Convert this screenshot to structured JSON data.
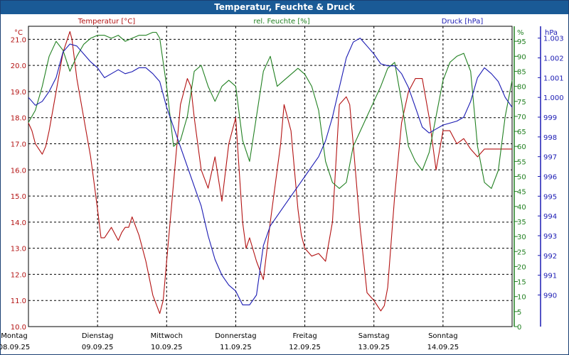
{
  "window": {
    "title": "Temperatur, Feuchte & Druck"
  },
  "colors": {
    "temperature": "#b31212",
    "humidity": "#218021",
    "pressure": "#1a1ab3",
    "titlebar": "#1a5a96"
  },
  "chart_data": {
    "type": "line",
    "title": "Temperatur, Feuchte & Druck",
    "legend": [
      "Temperatur [°C]",
      "rel. Feuchte [%]",
      "Druck [hPa]"
    ],
    "axes": {
      "left": {
        "unit": "°C",
        "min": 10.0,
        "max": 21.5,
        "ticks": [
          "10.0",
          "11.0",
          "12.0",
          "13.0",
          "14.0",
          "15.0",
          "16.0",
          "17.0",
          "18.0",
          "19.0",
          "20.0",
          "21.0"
        ]
      },
      "right1": {
        "unit": "%",
        "min": 0,
        "max": 100,
        "ticks": [
          "0",
          "5",
          "10",
          "15",
          "20",
          "25",
          "30",
          "35",
          "40",
          "45",
          "50",
          "55",
          "60",
          "65",
          "70",
          "75",
          "80",
          "85",
          "90",
          "95"
        ]
      },
      "right2": {
        "unit": "hPa",
        "min": 988.4,
        "max": 1003.6,
        "ticks": [
          "990",
          "991",
          "992",
          "993",
          "994",
          "995",
          "996",
          "997",
          "998",
          "999",
          "1.000",
          "1.001",
          "1.002",
          "1.003"
        ]
      }
    },
    "x_days": [
      "Montag",
      "Dienstag",
      "Mittwoch",
      "Donnerstag",
      "Freitag",
      "Samstag",
      "Sonntag"
    ],
    "x_dates": [
      "08.09.25",
      "09.09.25",
      "10.09.25",
      "11.09.25",
      "12.09.25",
      "13.09.25",
      "14.09.25"
    ],
    "x_range_days": [
      0,
      7.0
    ],
    "series": [
      {
        "name": "Temperatur [°C]",
        "axis": "left",
        "x": [
          0,
          0.05,
          0.1,
          0.15,
          0.2,
          0.25,
          0.3,
          0.4,
          0.5,
          0.6,
          0.63,
          0.7,
          0.8,
          0.9,
          0.95,
          1.0,
          1.05,
          1.1,
          1.2,
          1.3,
          1.35,
          1.4,
          1.45,
          1.5,
          1.6,
          1.7,
          1.8,
          1.9,
          1.95,
          2.0,
          2.1,
          2.2,
          2.3,
          2.35,
          2.4,
          2.5,
          2.6,
          2.7,
          2.8,
          2.9,
          3.0,
          3.1,
          3.15,
          3.2,
          3.3,
          3.4,
          3.5,
          3.6,
          3.65,
          3.7,
          3.8,
          3.9,
          3.95,
          4.0,
          4.1,
          4.2,
          4.3,
          4.4,
          4.5,
          4.6,
          4.65,
          4.7,
          4.8,
          4.9,
          5.0,
          5.1,
          5.15,
          5.2,
          5.3,
          5.4,
          5.5,
          5.6,
          5.7,
          5.8,
          5.9,
          6.0,
          6.1,
          6.2,
          6.3,
          6.4,
          6.5,
          6.6,
          6.7,
          6.75,
          6.8,
          6.9,
          7.0
        ],
        "values": [
          17.8,
          17.5,
          17.0,
          16.8,
          16.6,
          16.9,
          17.5,
          19.0,
          20.5,
          21.3,
          21.0,
          19.5,
          18.0,
          16.5,
          15.5,
          14.5,
          13.4,
          13.4,
          13.8,
          13.3,
          13.6,
          13.8,
          13.8,
          14.2,
          13.5,
          12.5,
          11.2,
          10.5,
          11.0,
          12.5,
          15.5,
          18.5,
          19.5,
          19.2,
          18.0,
          16.0,
          15.3,
          16.5,
          14.8,
          17.0,
          18.0,
          14.0,
          13.0,
          13.4,
          12.5,
          11.8,
          14.0,
          16.0,
          17.0,
          18.5,
          17.5,
          14.5,
          13.5,
          13.0,
          12.7,
          12.8,
          12.5,
          14.0,
          18.5,
          18.8,
          18.5,
          17.0,
          13.8,
          11.3,
          11.0,
          10.6,
          10.8,
          11.5,
          15.0,
          17.8,
          19.0,
          19.5,
          19.5,
          18.0,
          16.0,
          17.5,
          17.5,
          17.0,
          17.2,
          16.8,
          16.5,
          16.8,
          16.8,
          16.8,
          16.8,
          16.8,
          16.8
        ]
      },
      {
        "name": "rel. Feuchte [%]",
        "axis": "right1",
        "x": [
          0,
          0.1,
          0.2,
          0.3,
          0.4,
          0.5,
          0.6,
          0.7,
          0.8,
          0.9,
          1.0,
          1.1,
          1.2,
          1.3,
          1.4,
          1.5,
          1.6,
          1.7,
          1.8,
          1.85,
          1.9,
          2.0,
          2.1,
          2.2,
          2.3,
          2.4,
          2.5,
          2.6,
          2.7,
          2.8,
          2.9,
          3.0,
          3.1,
          3.2,
          3.3,
          3.4,
          3.5,
          3.6,
          3.7,
          3.8,
          3.9,
          4.0,
          4.1,
          4.2,
          4.3,
          4.4,
          4.5,
          4.6,
          4.7,
          4.8,
          4.9,
          5.0,
          5.1,
          5.2,
          5.3,
          5.4,
          5.5,
          5.6,
          5.7,
          5.8,
          5.9,
          6.0,
          6.1,
          6.2,
          6.3,
          6.4,
          6.5,
          6.6,
          6.7,
          6.8,
          6.9,
          7.0
        ],
        "values": [
          68,
          72,
          80,
          90,
          95,
          92,
          85,
          90,
          94,
          96,
          97,
          97,
          96,
          97,
          95,
          96,
          97,
          97,
          98,
          98,
          96,
          80,
          60,
          62,
          70,
          85,
          87,
          80,
          75,
          80,
          82,
          80,
          62,
          55,
          70,
          85,
          90,
          80,
          82,
          84,
          86,
          84,
          80,
          72,
          55,
          48,
          46,
          48,
          60,
          65,
          70,
          75,
          80,
          86,
          88,
          75,
          60,
          55,
          52,
          58,
          70,
          82,
          88,
          90,
          91,
          85,
          60,
          48,
          46,
          52,
          70,
          82
        ]
      },
      {
        "name": "Druck [hPa]",
        "axis": "right2",
        "x": [
          0,
          0.1,
          0.2,
          0.3,
          0.4,
          0.5,
          0.6,
          0.7,
          0.8,
          0.9,
          1.0,
          1.1,
          1.2,
          1.3,
          1.4,
          1.5,
          1.6,
          1.7,
          1.8,
          1.85,
          1.9,
          2.0,
          2.1,
          2.2,
          2.3,
          2.4,
          2.5,
          2.6,
          2.7,
          2.8,
          2.9,
          3.0,
          3.1,
          3.2,
          3.3,
          3.4,
          3.5,
          3.6,
          3.7,
          3.8,
          3.9,
          4.0,
          4.1,
          4.2,
          4.3,
          4.4,
          4.5,
          4.6,
          4.7,
          4.8,
          4.9,
          5.0,
          5.1,
          5.2,
          5.3,
          5.4,
          5.5,
          5.6,
          5.7,
          5.8,
          5.9,
          6.0,
          6.1,
          6.2,
          6.3,
          6.4,
          6.5,
          6.6,
          6.7,
          6.8,
          6.9,
          7.0
        ],
        "values": [
          1000.0,
          999.6,
          999.8,
          1000.3,
          1001.0,
          1002.3,
          1002.7,
          1002.6,
          1002.2,
          1001.8,
          1001.5,
          1001.0,
          1001.2,
          1001.4,
          1001.2,
          1001.3,
          1001.5,
          1001.5,
          1001.2,
          1001.0,
          1000.8,
          999.5,
          998.5,
          997.5,
          996.5,
          995.5,
          994.5,
          993.0,
          991.8,
          991.0,
          990.5,
          990.2,
          989.5,
          989.5,
          990.0,
          992.5,
          993.5,
          994.0,
          994.5,
          995.0,
          995.5,
          996.0,
          996.5,
          997.0,
          997.8,
          999.0,
          1000.5,
          1002.0,
          1002.8,
          1003.0,
          1002.6,
          1002.2,
          1001.7,
          1001.6,
          1001.6,
          1001.2,
          1000.5,
          999.5,
          998.5,
          998.2,
          998.4,
          998.6,
          998.7,
          998.8,
          999.0,
          999.8,
          1001.0,
          1001.5,
          1001.2,
          1000.8,
          1000.0,
          999.5
        ]
      }
    ]
  }
}
